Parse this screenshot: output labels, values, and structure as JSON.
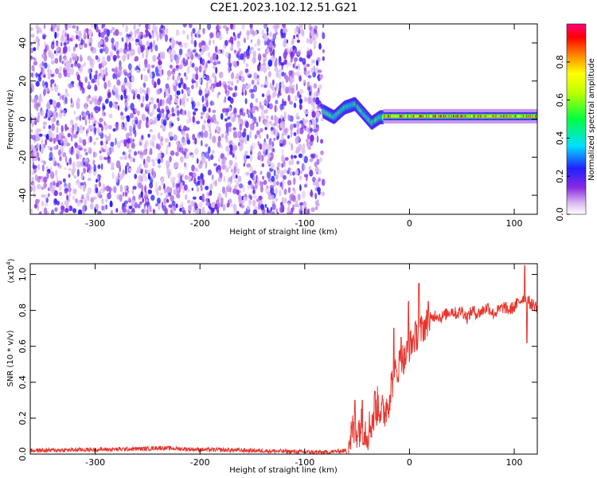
{
  "title": "C2E1.2023.102.12.51.G21",
  "chart_data": [
    {
      "type": "heatmap",
      "title": "C2E1.2023.102.12.51.G21",
      "xlabel": "Height of straight line (km)",
      "ylabel": "Frequency (Hz)",
      "xlim": [
        -362,
        122
      ],
      "ylim": [
        -50,
        50
      ],
      "x_ticks": [
        -300,
        -200,
        -100,
        0,
        100
      ],
      "y_ticks": [
        -40,
        -20,
        0,
        20,
        40
      ],
      "colorbar": {
        "label": "Normalized spectral amplitude",
        "range": [
          0,
          1
        ],
        "ticks": [
          0.0,
          0.2,
          0.4,
          0.6,
          0.8
        ]
      },
      "description_regions": [
        {
          "x_range": [
            -362,
            -82
          ],
          "y_range": [
            -50,
            50
          ],
          "amplitude_range": [
            0.05,
            0.25
          ]
        },
        {
          "x_range": [
            -82,
            -25
          ],
          "center_frequency_path": [
            [
              -82,
              4
            ],
            [
              -72,
              1
            ],
            [
              -62,
              6
            ],
            [
              -52,
              8
            ],
            [
              -44,
              3
            ],
            [
              -36,
              -2
            ],
            [
              -28,
              1
            ]
          ],
          "amplitude_range": [
            0.4,
            0.7
          ]
        },
        {
          "x_range": [
            -25,
            122
          ],
          "center_frequency": 1.5,
          "amplitude_range": [
            0.6,
            1.0
          ]
        }
      ],
      "grid": false
    },
    {
      "type": "line",
      "xlabel": "Height of straight line (km)",
      "ylabel": "SNR (10 * v/v)",
      "y_multiplier": "(x10",
      "y_multiplier_exp": "4",
      "y_multiplier_close": ")",
      "xlim": [
        -362,
        122
      ],
      "ylim": [
        0,
        1.06
      ],
      "x_ticks": [
        -300,
        -200,
        -100,
        0,
        100
      ],
      "y_ticks": [
        0.0,
        0.2,
        0.4,
        0.6,
        0.8,
        1.0
      ],
      "series": [
        {
          "color": "#e8342c",
          "x": [
            -362,
            -300,
            -250,
            -240,
            -200,
            -150,
            -100,
            -80,
            -60,
            -55,
            -50,
            -45,
            -40,
            -35,
            -30,
            -25,
            -20,
            -15,
            -12,
            -8,
            -5,
            0,
            5,
            10,
            15,
            20,
            25,
            30,
            35,
            40,
            45,
            50,
            55,
            60,
            65,
            70,
            75,
            80,
            85,
            90,
            95,
            100,
            105,
            110,
            115,
            122
          ],
          "y": [
            0.02,
            0.025,
            0.03,
            0.035,
            0.025,
            0.02,
            0.012,
            0.01,
            0.02,
            0.12,
            0.14,
            0.16,
            0.12,
            0.2,
            0.28,
            0.22,
            0.3,
            0.45,
            0.45,
            0.55,
            0.52,
            0.6,
            0.65,
            0.68,
            0.72,
            0.74,
            0.78,
            0.76,
            0.78,
            0.8,
            0.78,
            0.8,
            0.76,
            0.8,
            0.78,
            0.8,
            0.82,
            0.78,
            0.8,
            0.82,
            0.8,
            0.82,
            0.85,
            0.88,
            0.84,
            0.82
          ],
          "spikes": [
            [
              -52,
              0.3
            ],
            [
              -45,
              0.3
            ],
            [
              -33,
              0.35
            ],
            [
              -15,
              0.7
            ],
            [
              -8,
              0.65
            ],
            [
              -1,
              0.85
            ],
            [
              9,
              0.95
            ],
            [
              18,
              0.85
            ],
            [
              110,
              1.05
            ],
            [
              112,
              0.62
            ]
          ]
        }
      ],
      "grid": false
    }
  ]
}
